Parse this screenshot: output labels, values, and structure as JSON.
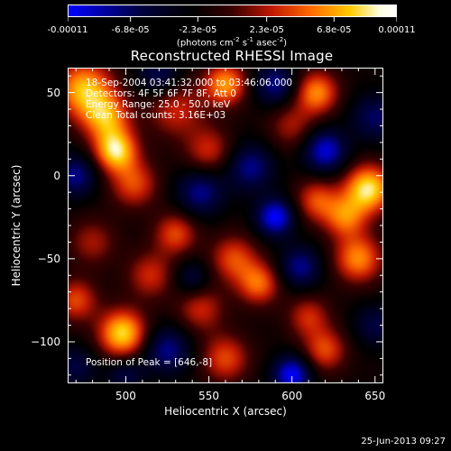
{
  "colorbar": {
    "tick_labels": [
      "-0.00011",
      "-6.8e-05",
      "-2.3e-05",
      "2.3e-05",
      "6.8e-05",
      "0.00011"
    ],
    "tick_values": [
      -0.00011,
      -6.8e-05,
      -2.3e-05,
      2.3e-05,
      6.8e-05,
      0.00011
    ],
    "range": [
      -0.00011,
      0.00011
    ],
    "unit_prefix": "(photons cm",
    "unit_exp1": "-2",
    "unit_mid": " s",
    "unit_exp2": "-1",
    "unit_mid2": " asec",
    "unit_exp3": "-2",
    "unit_suffix": ")",
    "colormap": [
      "#0000ff",
      "#000040",
      "#000000",
      "#3a0000",
      "#c01800",
      "#ff6a00",
      "#ffcc00",
      "#ffffe0",
      "#ffffff"
    ]
  },
  "chart_data": {
    "type": "heatmap",
    "title": "Reconstructed RHESSI Image",
    "xlabel": "Heliocentric X (arcsec)",
    "ylabel": "Heliocentric Y (arcsec)",
    "xlim": [
      465,
      655
    ],
    "ylim": [
      -125,
      65
    ],
    "xticks": [
      500,
      550,
      600,
      650
    ],
    "yticks": [
      -100,
      -50,
      0,
      50
    ],
    "annotations": {
      "line1": "18-Sep-2004 03:41:32.000 to 03:46:06.000",
      "line2": "Detectors: 4F 5F 6F 7F 8F, Att 0",
      "line3": "Energy Range: 25.0 - 50.0 keV",
      "line4": "Clean     Total counts: 3.16E+03",
      "peak": "Position of Peak = [646,-8]"
    },
    "blobs": [
      {
        "x": 475,
        "y": 52,
        "amp": 9.5e-05,
        "r": 12
      },
      {
        "x": 494,
        "y": 15,
        "amp": 0.000105,
        "r": 9
      },
      {
        "x": 488,
        "y": 35,
        "amp": 8e-05,
        "r": 10
      },
      {
        "x": 505,
        "y": -5,
        "amp": 6e-05,
        "r": 10
      },
      {
        "x": 530,
        "y": 40,
        "amp": 5e-05,
        "r": 12
      },
      {
        "x": 550,
        "y": 15,
        "amp": 5e-05,
        "r": 10
      },
      {
        "x": 560,
        "y": 55,
        "amp": 8.5e-05,
        "r": 9
      },
      {
        "x": 615,
        "y": 50,
        "amp": 8e-05,
        "r": 9
      },
      {
        "x": 600,
        "y": 30,
        "amp": 4e-05,
        "r": 10
      },
      {
        "x": 646,
        "y": -8,
        "amp": 0.00011,
        "r": 10
      },
      {
        "x": 632,
        "y": -25,
        "amp": 7e-05,
        "r": 9
      },
      {
        "x": 615,
        "y": -15,
        "amp": 6e-05,
        "r": 9
      },
      {
        "x": 640,
        "y": -50,
        "amp": 8e-05,
        "r": 10
      },
      {
        "x": 620,
        "y": -105,
        "amp": 6e-05,
        "r": 9
      },
      {
        "x": 565,
        "y": -50,
        "amp": 6e-05,
        "r": 10
      },
      {
        "x": 580,
        "y": -65,
        "amp": 7e-05,
        "r": 9
      },
      {
        "x": 545,
        "y": -80,
        "amp": 5e-05,
        "r": 10
      },
      {
        "x": 530,
        "y": -35,
        "amp": 6e-05,
        "r": 9
      },
      {
        "x": 515,
        "y": -60,
        "amp": 5e-05,
        "r": 10
      },
      {
        "x": 498,
        "y": -95,
        "amp": 0.000105,
        "r": 10
      },
      {
        "x": 470,
        "y": -75,
        "amp": 6e-05,
        "r": 9
      },
      {
        "x": 560,
        "y": -110,
        "amp": 6e-05,
        "r": 10
      },
      {
        "x": 610,
        "y": -85,
        "amp": 5e-05,
        "r": 9
      },
      {
        "x": 480,
        "y": -40,
        "amp": 4e-05,
        "r": 10
      },
      {
        "x": 520,
        "y": 60,
        "amp": -5e-05,
        "r": 9
      },
      {
        "x": 590,
        "y": 55,
        "amp": -6e-05,
        "r": 9
      },
      {
        "x": 590,
        "y": -25,
        "amp": -9e-05,
        "r": 8
      },
      {
        "x": 575,
        "y": 5,
        "amp": -6e-05,
        "r": 10
      },
      {
        "x": 545,
        "y": -10,
        "amp": -6e-05,
        "r": 10
      },
      {
        "x": 620,
        "y": 15,
        "amp": -8e-05,
        "r": 9
      },
      {
        "x": 605,
        "y": -55,
        "amp": -6e-05,
        "r": 9
      },
      {
        "x": 525,
        "y": -105,
        "amp": -6e-05,
        "r": 10
      },
      {
        "x": 470,
        "y": 0,
        "amp": -6e-05,
        "r": 9
      },
      {
        "x": 540,
        "y": -62,
        "amp": -4e-05,
        "r": 8
      },
      {
        "x": 600,
        "y": -120,
        "amp": -9e-05,
        "r": 8
      },
      {
        "x": 650,
        "y": 35,
        "amp": -5e-05,
        "r": 10
      },
      {
        "x": 500,
        "y": -120,
        "amp": -4e-05,
        "r": 8
      },
      {
        "x": 470,
        "y": -115,
        "amp": -4e-05,
        "r": 9
      },
      {
        "x": 650,
        "y": -90,
        "amp": -4e-05,
        "r": 9
      }
    ],
    "baseline": -2e-05
  },
  "timestamp": "25-Jun-2013 09:27"
}
